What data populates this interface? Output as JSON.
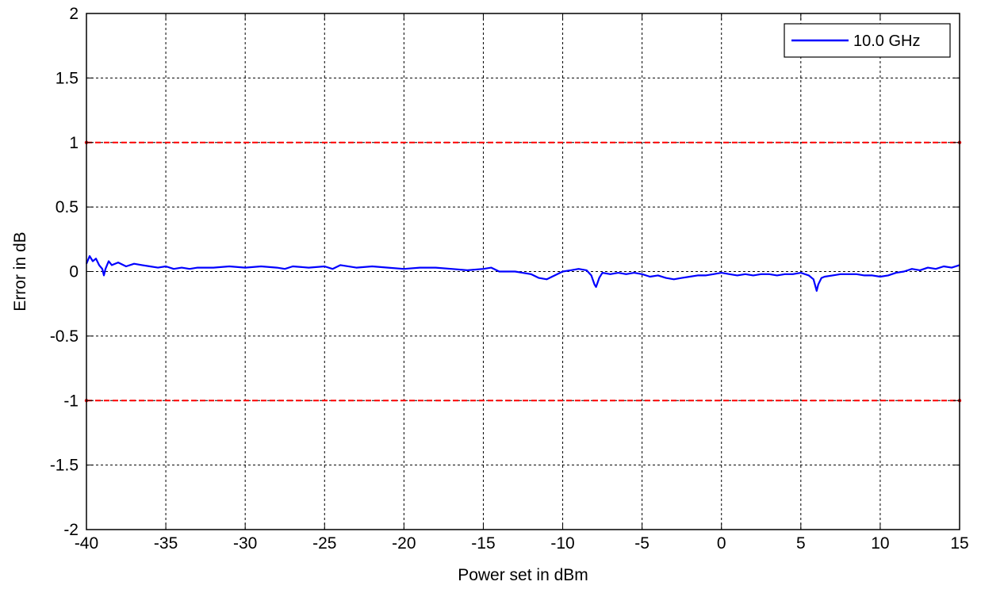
{
  "chart_data": {
    "type": "line",
    "xlabel": "Power set in dBm",
    "ylabel": "Error  in dB",
    "xlim": [
      -40,
      15
    ],
    "ylim": [
      -2,
      2
    ],
    "x_ticks": [
      -40,
      -35,
      -30,
      -25,
      -20,
      -15,
      -10,
      -5,
      0,
      5,
      10,
      15
    ],
    "y_ticks": [
      -2,
      -1.5,
      -1,
      -0.5,
      0,
      0.5,
      1,
      1.5,
      2
    ],
    "x_tick_labels": [
      "-40",
      "-35",
      "-30",
      "-25",
      "-20",
      "-15",
      "-10",
      "-5",
      "0",
      "5",
      "10",
      "15"
    ],
    "y_tick_labels": [
      "-2",
      "-1.5",
      "-1",
      "-0.5",
      "0",
      "0.5",
      "1",
      "1.5",
      "2"
    ],
    "grid": true,
    "legend_position": "top-right",
    "series": [
      {
        "name": "10.0 GHz",
        "color": "#0000ff",
        "style": "solid",
        "x": [
          -40,
          -39.8,
          -39.6,
          -39.4,
          -39.2,
          -39.0,
          -38.9,
          -38.8,
          -38.6,
          -38.4,
          -38.0,
          -37.5,
          -37.0,
          -36.5,
          -36.0,
          -35.5,
          -35.0,
          -34.5,
          -34.0,
          -33.5,
          -33.0,
          -32.0,
          -31.0,
          -30.0,
          -29.0,
          -28.0,
          -27.5,
          -27.0,
          -26.0,
          -25.0,
          -24.5,
          -24.0,
          -23.0,
          -22.0,
          -21.0,
          -20.0,
          -19.0,
          -18.0,
          -17.0,
          -16.0,
          -15.0,
          -14.5,
          -14.0,
          -13.0,
          -12.0,
          -11.5,
          -11.0,
          -10.5,
          -10.0,
          -9.5,
          -9.0,
          -8.5,
          -8.2,
          -8.0,
          -7.9,
          -7.7,
          -7.5,
          -7.0,
          -6.5,
          -6.0,
          -5.5,
          -5.0,
          -4.5,
          -4.0,
          -3.5,
          -3.0,
          -2.5,
          -2.0,
          -1.5,
          -1.0,
          -0.5,
          0.0,
          0.5,
          1.0,
          1.5,
          2.0,
          2.5,
          3.0,
          3.5,
          4.0,
          4.5,
          5.0,
          5.5,
          5.8,
          6.0,
          6.1,
          6.3,
          6.5,
          7.0,
          7.5,
          8.0,
          8.5,
          9.0,
          9.5,
          10.0,
          10.5,
          11.0,
          11.5,
          12.0,
          12.5,
          13.0,
          13.5,
          14.0,
          14.5,
          15.0
        ],
        "y": [
          0.06,
          0.12,
          0.08,
          0.1,
          0.05,
          0.02,
          -0.03,
          0.02,
          0.08,
          0.05,
          0.07,
          0.04,
          0.06,
          0.05,
          0.04,
          0.03,
          0.04,
          0.02,
          0.03,
          0.02,
          0.03,
          0.03,
          0.04,
          0.03,
          0.04,
          0.03,
          0.02,
          0.04,
          0.03,
          0.04,
          0.02,
          0.05,
          0.03,
          0.04,
          0.03,
          0.02,
          0.03,
          0.03,
          0.02,
          0.01,
          0.02,
          0.03,
          0.0,
          0.0,
          -0.02,
          -0.05,
          -0.06,
          -0.03,
          0.0,
          0.01,
          0.02,
          0.01,
          -0.03,
          -0.1,
          -0.12,
          -0.05,
          -0.01,
          -0.02,
          -0.01,
          -0.02,
          -0.01,
          -0.02,
          -0.04,
          -0.03,
          -0.05,
          -0.06,
          -0.05,
          -0.04,
          -0.03,
          -0.03,
          -0.02,
          -0.01,
          -0.02,
          -0.03,
          -0.02,
          -0.03,
          -0.02,
          -0.02,
          -0.03,
          -0.02,
          -0.02,
          -0.01,
          -0.03,
          -0.06,
          -0.15,
          -0.1,
          -0.05,
          -0.04,
          -0.03,
          -0.02,
          -0.02,
          -0.02,
          -0.03,
          -0.03,
          -0.04,
          -0.03,
          -0.01,
          0.0,
          0.02,
          0.01,
          0.03,
          0.02,
          0.04,
          0.03,
          0.05
        ]
      },
      {
        "color": "#ff0000",
        "style": "dashed",
        "x": [
          -40,
          15
        ],
        "y": [
          1,
          1
        ]
      },
      {
        "color": "#ff0000",
        "style": "dashed",
        "x": [
          -40,
          15
        ],
        "y": [
          -1,
          -1
        ]
      }
    ]
  }
}
